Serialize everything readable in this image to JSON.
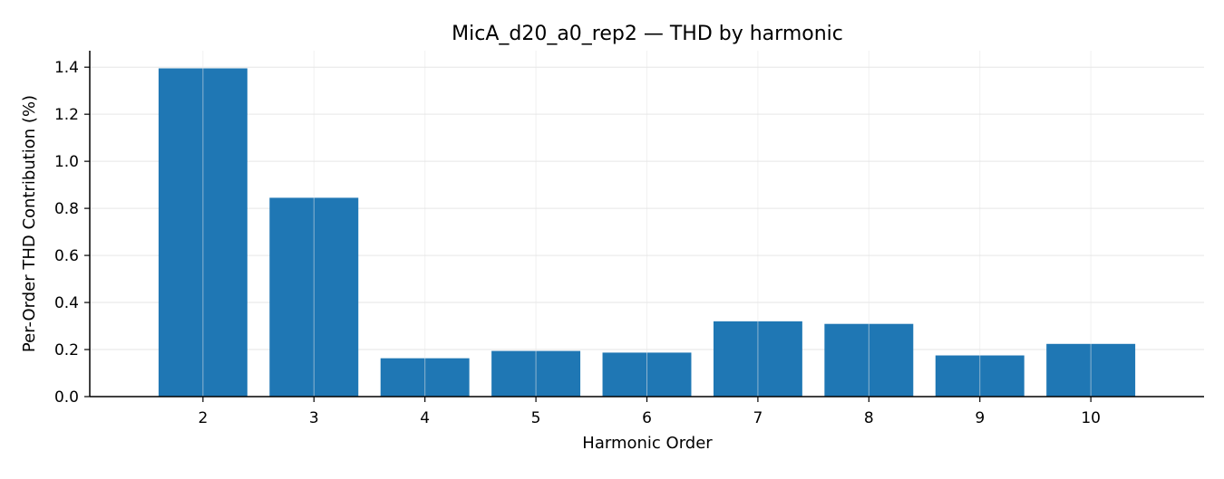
{
  "chart_data": {
    "type": "bar",
    "title": "MicA_d20_a0_rep2 — THD by harmonic",
    "xlabel": "Harmonic Order",
    "ylabel": "Per-Order THD Contribution (%)",
    "categories": [
      "2",
      "3",
      "4",
      "5",
      "6",
      "7",
      "8",
      "9",
      "10"
    ],
    "values": [
      1.395,
      0.845,
      0.163,
      0.194,
      0.187,
      0.32,
      0.309,
      0.175,
      0.224
    ],
    "ylim": [
      0,
      1.47
    ],
    "yticks": [
      "0.0",
      "0.2",
      "0.4",
      "0.6",
      "0.8",
      "1.0",
      "1.2",
      "1.4"
    ],
    "grid": true,
    "legend": "none",
    "colors": {
      "bar": "#1f77b4",
      "grid": "#e6e6e6",
      "axis": "#000000"
    }
  }
}
